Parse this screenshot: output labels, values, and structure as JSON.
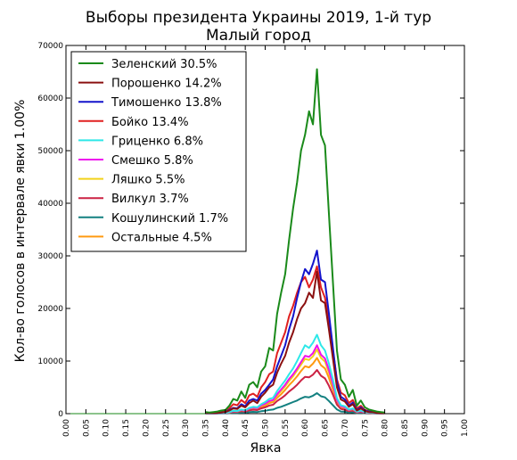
{
  "chart_data": {
    "type": "line",
    "title": "Выборы президента Украины 2019, 1-й тур",
    "subtitle": "Малый город",
    "xlabel": "Явка",
    "ylabel": "Кол-во голосов в интервале явки 1.00%",
    "xlim": [
      0.0,
      1.0
    ],
    "ylim": [
      0,
      70000
    ],
    "x_ticks": [
      "0.00",
      "0.05",
      "0.10",
      "0.15",
      "0.20",
      "0.25",
      "0.30",
      "0.35",
      "0.40",
      "0.45",
      "0.50",
      "0.55",
      "0.60",
      "0.65",
      "0.70",
      "0.75",
      "0.80",
      "0.85",
      "0.90",
      "0.95",
      "1.00"
    ],
    "y_ticks": [
      "0",
      "10000",
      "20000",
      "30000",
      "40000",
      "50000",
      "60000",
      "70000"
    ],
    "legend_position": "top-left",
    "grid": false,
    "x": [
      0.35,
      0.36,
      0.37,
      0.38,
      0.39,
      0.4,
      0.41,
      0.42,
      0.43,
      0.44,
      0.45,
      0.46,
      0.47,
      0.48,
      0.49,
      0.5,
      0.51,
      0.52,
      0.53,
      0.54,
      0.55,
      0.56,
      0.57,
      0.58,
      0.59,
      0.6,
      0.61,
      0.62,
      0.63,
      0.64,
      0.65,
      0.66,
      0.67,
      0.68,
      0.69,
      0.7,
      0.71,
      0.72,
      0.73,
      0.74,
      0.75,
      0.76,
      0.77,
      0.78,
      0.79,
      0.8
    ],
    "series": [
      {
        "name": "Зеленский 30.5%",
        "color": "#1a8a1a",
        "values": [
          300,
          200,
          300,
          400,
          600,
          700,
          1500,
          2800,
          2500,
          4200,
          3000,
          5500,
          6000,
          5000,
          8000,
          9000,
          12500,
          12000,
          19000,
          23000,
          26500,
          33000,
          39000,
          44000,
          50000,
          53000,
          57500,
          55000,
          65500,
          53000,
          51000,
          38000,
          25000,
          12000,
          6500,
          5500,
          3200,
          4500,
          1500,
          2500,
          1200,
          800,
          600,
          400,
          300,
          200
        ]
      },
      {
        "name": "Порошенко 14.2%",
        "color": "#8b1010",
        "values": [
          100,
          100,
          100,
          150,
          200,
          300,
          600,
          1000,
          900,
          1500,
          1200,
          2000,
          2500,
          2000,
          3200,
          4000,
          5000,
          5500,
          7800,
          9500,
          11000,
          13500,
          15500,
          18000,
          20000,
          21000,
          23000,
          22000,
          27000,
          21500,
          21000,
          16000,
          10500,
          5000,
          2700,
          2300,
          1300,
          1800,
          600,
          1000,
          500,
          300,
          250,
          150,
          100,
          80
        ]
      },
      {
        "name": "Тимошенко 13.8%",
        "color": "#1414cc",
        "values": [
          100,
          100,
          100,
          150,
          200,
          300,
          700,
          1100,
          1000,
          1800,
          1400,
          2500,
          2800,
          2500,
          3800,
          4500,
          5500,
          6500,
          9000,
          11000,
          13000,
          16000,
          18500,
          22000,
          25000,
          27500,
          26500,
          28500,
          31000,
          25500,
          25000,
          19000,
          12500,
          6000,
          3200,
          2700,
          1500,
          2100,
          700,
          1200,
          600,
          400,
          300,
          200,
          120,
          100
        ]
      },
      {
        "name": "Бойко 13.4%",
        "color": "#e02020",
        "values": [
          150,
          150,
          200,
          250,
          350,
          500,
          1000,
          1800,
          1600,
          2600,
          2000,
          3500,
          3800,
          3200,
          5000,
          6000,
          7500,
          8000,
          11500,
          13500,
          15500,
          18500,
          20500,
          23000,
          25000,
          26000,
          24000,
          25500,
          28000,
          24000,
          22000,
          17500,
          12000,
          6500,
          4000,
          3500,
          2000,
          2600,
          1000,
          1500,
          700,
          500,
          400,
          250,
          150,
          120
        ]
      },
      {
        "name": "Гриценко 6.8%",
        "color": "#2ee8e8",
        "values": [
          50,
          50,
          50,
          80,
          100,
          150,
          300,
          550,
          500,
          800,
          650,
          1100,
          1300,
          1200,
          1800,
          2200,
          2800,
          3000,
          4300,
          5300,
          6300,
          7500,
          8600,
          10000,
          11500,
          13000,
          12500,
          13500,
          15000,
          13000,
          12000,
          9500,
          6500,
          3000,
          1600,
          1400,
          800,
          1000,
          400,
          600,
          300,
          200,
          150,
          100,
          60,
          50
        ]
      },
      {
        "name": "Смешко 5.8%",
        "color": "#ee11ee",
        "values": [
          50,
          50,
          50,
          70,
          100,
          130,
          280,
          500,
          450,
          720,
          580,
          1000,
          1150,
          1050,
          1600,
          1900,
          2400,
          2600,
          3700,
          4600,
          5500,
          6600,
          7500,
          8600,
          9800,
          11000,
          10800,
          11500,
          13000,
          11200,
          10500,
          8300,
          5600,
          2600,
          1400,
          1200,
          700,
          900,
          350,
          500,
          250,
          180,
          130,
          90,
          50,
          40
        ]
      },
      {
        "name": "Ляшко 5.5%",
        "color": "#f2d21a",
        "values": [
          40,
          40,
          50,
          70,
          90,
          120,
          260,
          470,
          430,
          680,
          550,
          950,
          1100,
          1000,
          1500,
          1800,
          2300,
          2500,
          3500,
          4300,
          5200,
          6200,
          7100,
          8200,
          9300,
          10400,
          10200,
          10900,
          12200,
          10600,
          9900,
          7800,
          5300,
          2500,
          1300,
          1100,
          650,
          850,
          330,
          480,
          240,
          170,
          120,
          80,
          50,
          40
        ]
      },
      {
        "name": "Вилкул 3.7%",
        "color": "#cc2244",
        "values": [
          30,
          30,
          30,
          50,
          60,
          80,
          170,
          320,
          290,
          460,
          370,
          640,
          740,
          680,
          1000,
          1200,
          1550,
          1700,
          2400,
          2900,
          3500,
          4200,
          4800,
          5500,
          6300,
          7000,
          6900,
          7400,
          8300,
          7200,
          6700,
          5300,
          3600,
          1700,
          900,
          750,
          450,
          580,
          220,
          320,
          160,
          110,
          80,
          50,
          30,
          25
        ]
      },
      {
        "name": "Кошулинский 1.7%",
        "color": "#138080",
        "values": [
          10,
          10,
          15,
          20,
          30,
          40,
          80,
          150,
          130,
          210,
          170,
          290,
          340,
          310,
          460,
          550,
          700,
          780,
          1100,
          1300,
          1600,
          1900,
          2200,
          2500,
          2900,
          3200,
          3100,
          3400,
          3900,
          3300,
          3100,
          2400,
          1600,
          800,
          400,
          350,
          200,
          270,
          100,
          150,
          70,
          50,
          35,
          25,
          15,
          10
        ]
      },
      {
        "name": "Остальные 4.5%",
        "color": "#ff9a10",
        "values": [
          40,
          40,
          40,
          60,
          80,
          110,
          230,
          400,
          370,
          590,
          480,
          820,
          950,
          870,
          1300,
          1550,
          2000,
          2200,
          3000,
          3700,
          4500,
          5400,
          6200,
          7100,
          8100,
          9000,
          8800,
          9500,
          10600,
          9200,
          8600,
          6800,
          4600,
          2200,
          1100,
          950,
          550,
          720,
          280,
          410,
          200,
          140,
          100,
          70,
          40,
          30
        ]
      }
    ]
  }
}
